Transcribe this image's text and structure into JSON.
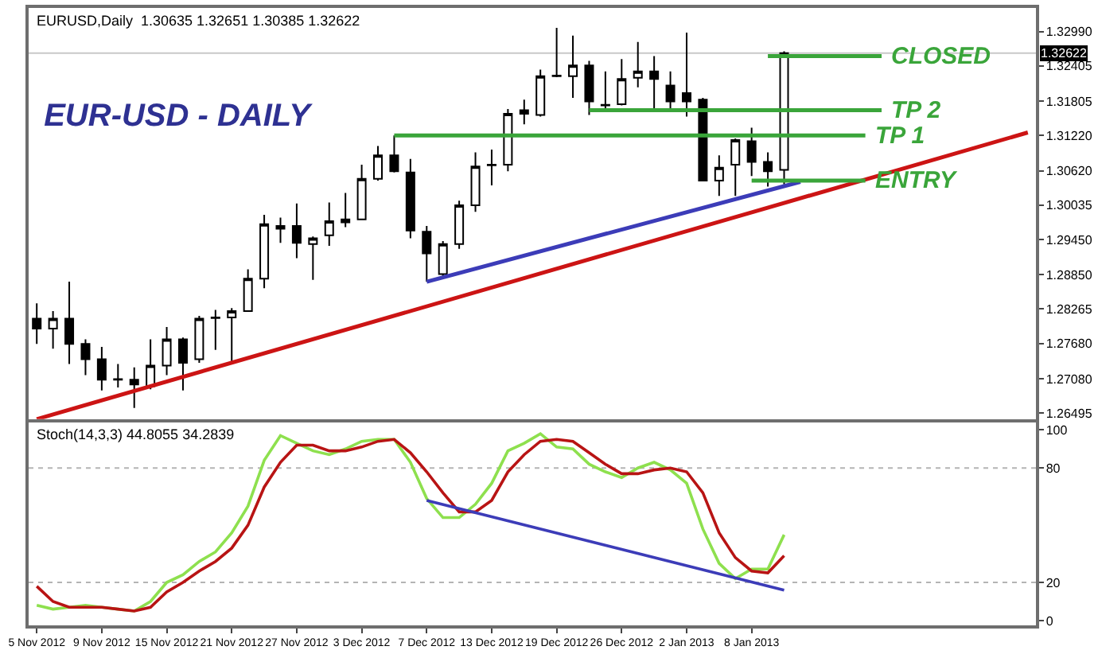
{
  "chart_data": [
    {
      "type": "candlestick",
      "title": "EUR-USD - DAILY",
      "annotations": [
        "EURUSD,Daily  1.30635 1.32651 1.30385 1.32622"
      ],
      "categories": [
        null,
        null,
        null,
        null,
        null,
        null,
        null,
        null,
        null,
        null,
        null,
        null,
        null,
        null,
        null,
        null,
        null,
        null,
        null,
        null,
        null,
        null,
        null,
        null,
        null,
        null,
        null,
        null,
        null,
        null,
        null,
        null,
        null,
        null,
        null,
        null,
        null,
        null,
        null,
        null,
        null,
        null,
        null,
        null,
        null,
        null,
        null,
        null,
        null,
        null,
        null,
        null,
        null,
        null,
        null,
        null,
        null,
        null,
        null,
        null,
        null,
        null
      ],
      "ohlc": [
        [
          1.281,
          1.2836,
          1.2767,
          1.2793
        ],
        [
          1.2793,
          1.2823,
          1.2759,
          1.281
        ],
        [
          1.281,
          1.2873,
          1.2733,
          1.2767
        ],
        [
          1.2767,
          1.2775,
          1.2714,
          1.2741
        ],
        [
          1.2741,
          1.2762,
          1.2688,
          1.2706
        ],
        [
          1.2707,
          1.2733,
          1.2693,
          1.2706
        ],
        [
          1.2706,
          1.2727,
          1.2658,
          1.2698
        ],
        [
          1.2695,
          1.2775,
          1.269,
          1.273
        ],
        [
          1.273,
          1.2796,
          1.2714,
          1.2775
        ],
        [
          1.2775,
          1.2778,
          1.2688,
          1.2735
        ],
        [
          1.2741,
          1.2815,
          1.2735,
          1.281
        ],
        [
          1.2811,
          1.2825,
          1.2757,
          1.2812
        ],
        [
          1.2812,
          1.2828,
          1.2735,
          1.2823
        ],
        [
          1.2823,
          1.2894,
          1.2823,
          1.2878
        ],
        [
          1.2878,
          1.2987,
          1.2862,
          1.2971
        ],
        [
          1.2963,
          1.2982,
          1.2939,
          1.2968
        ],
        [
          1.2968,
          1.3006,
          1.2913,
          1.2939
        ],
        [
          1.2937,
          1.295,
          1.2876,
          1.2947
        ],
        [
          1.2952,
          1.3008,
          1.2934,
          1.2976
        ],
        [
          1.2974,
          1.3024,
          1.2966,
          1.2979
        ],
        [
          1.2979,
          1.3072,
          1.2979,
          1.3048
        ],
        [
          1.3048,
          1.3104,
          1.3045,
          1.3088
        ],
        [
          1.3088,
          1.3122,
          1.3059,
          1.3061
        ],
        [
          1.3059,
          1.3082,
          1.2947,
          1.296
        ],
        [
          1.2958,
          1.2968,
          1.2873,
          1.2921
        ],
        [
          1.2886,
          1.2942,
          1.2881,
          1.2937
        ],
        [
          1.2937,
          1.3011,
          1.2929,
          1.3003
        ],
        [
          1.3003,
          1.3093,
          1.2992,
          1.3069
        ],
        [
          1.3071,
          1.3098,
          1.3037,
          1.3072
        ],
        [
          1.3072,
          1.3167,
          1.3061,
          1.3159
        ],
        [
          1.3165,
          1.3183,
          1.3141,
          1.3159
        ],
        [
          1.3157,
          1.3234,
          1.3154,
          1.3223
        ],
        [
          1.3223,
          1.3305,
          1.3221,
          1.3224
        ],
        [
          1.3223,
          1.3292,
          1.3186,
          1.3241
        ],
        [
          1.3241,
          1.3249,
          1.3157,
          1.318
        ],
        [
          1.3174,
          1.3231,
          1.3165,
          1.3173
        ],
        [
          1.3175,
          1.3252,
          1.3173,
          1.3218
        ],
        [
          1.322,
          1.3281,
          1.3204,
          1.3231
        ],
        [
          1.3231,
          1.3257,
          1.3167,
          1.3218
        ],
        [
          1.3207,
          1.3231,
          1.3167,
          1.318
        ],
        [
          1.3194,
          1.3297,
          1.3154,
          1.318
        ],
        [
          1.3183,
          1.3186,
          1.3044,
          1.3045
        ],
        [
          1.3045,
          1.3088,
          1.3019,
          1.3067
        ],
        [
          1.3072,
          1.3117,
          1.3019,
          1.3114
        ],
        [
          1.3112,
          1.3135,
          1.3053,
          1.3077
        ],
        [
          1.3077,
          1.3093,
          1.3035,
          1.3061
        ],
        [
          1.30635,
          1.32651,
          1.30385,
          1.32622
        ],
        null,
        null,
        null,
        null,
        null,
        null,
        null,
        null,
        null,
        null,
        null,
        null,
        null,
        null,
        null
      ],
      "series": [
        {
          "type": "line",
          "color": "#cc1414",
          "values": [
            1.2639,
            null,
            null,
            null,
            null,
            null,
            null,
            null,
            null,
            null,
            null,
            null,
            null,
            null,
            null,
            null,
            null,
            null,
            null,
            null,
            null,
            null,
            null,
            null,
            null,
            null,
            null,
            null,
            null,
            null,
            null,
            null,
            null,
            null,
            null,
            null,
            null,
            null,
            null,
            null,
            null,
            null,
            null,
            null,
            null,
            null,
            null,
            null,
            null,
            null,
            null,
            null,
            null,
            null,
            null,
            null,
            null,
            null,
            null,
            null,
            null,
            1.3127
          ]
        },
        {
          "type": "line",
          "color": "#3c3cb8",
          "values": [
            null,
            null,
            null,
            null,
            null,
            null,
            null,
            null,
            null,
            null,
            null,
            null,
            null,
            null,
            null,
            null,
            null,
            null,
            null,
            null,
            null,
            null,
            null,
            null,
            1.2873,
            null,
            null,
            null,
            null,
            null,
            null,
            null,
            null,
            null,
            null,
            null,
            null,
            null,
            null,
            null,
            null,
            null,
            null,
            null,
            null,
            null,
            null,
            1.3043,
            null,
            null,
            null,
            null,
            null,
            null,
            null,
            null,
            null,
            null,
            null,
            null,
            null,
            null
          ]
        },
        {
          "type": "line",
          "name": "CLOSED",
          "color": "#3aa53a",
          "values": [
            null,
            null,
            null,
            null,
            null,
            null,
            null,
            null,
            null,
            null,
            null,
            null,
            null,
            null,
            null,
            null,
            null,
            null,
            null,
            null,
            null,
            null,
            null,
            null,
            null,
            null,
            null,
            null,
            null,
            null,
            null,
            null,
            null,
            null,
            null,
            null,
            null,
            null,
            null,
            null,
            null,
            null,
            null,
            null,
            null,
            1.3257,
            null,
            null,
            null,
            null,
            null,
            null,
            1.3257,
            null,
            null,
            null,
            null,
            null,
            null,
            null,
            null,
            null
          ]
        },
        {
          "type": "line",
          "name": "TP 2",
          "color": "#3aa53a",
          "values": [
            null,
            null,
            null,
            null,
            null,
            null,
            null,
            null,
            null,
            null,
            null,
            null,
            null,
            null,
            null,
            null,
            null,
            null,
            null,
            null,
            null,
            null,
            null,
            null,
            null,
            null,
            null,
            null,
            null,
            null,
            null,
            null,
            null,
            null,
            1.3165,
            null,
            null,
            null,
            null,
            null,
            null,
            null,
            null,
            null,
            null,
            null,
            null,
            null,
            null,
            null,
            null,
            null,
            1.3165,
            null,
            null,
            null,
            null,
            null,
            null,
            null,
            null,
            null
          ]
        },
        {
          "type": "line",
          "name": "TP 1",
          "color": "#3aa53a",
          "values": [
            null,
            null,
            null,
            null,
            null,
            null,
            null,
            null,
            null,
            null,
            null,
            null,
            null,
            null,
            null,
            null,
            null,
            null,
            null,
            null,
            null,
            null,
            1.3122,
            null,
            null,
            null,
            null,
            null,
            null,
            null,
            null,
            null,
            null,
            null,
            null,
            null,
            null,
            null,
            null,
            null,
            null,
            null,
            null,
            null,
            null,
            null,
            null,
            null,
            null,
            null,
            null,
            1.3122,
            null,
            null,
            null,
            null,
            null,
            null,
            null,
            null,
            null,
            null
          ]
        },
        {
          "type": "line",
          "name": "ENTRY",
          "color": "#3aa53a",
          "values": [
            null,
            null,
            null,
            null,
            null,
            null,
            null,
            null,
            null,
            null,
            null,
            null,
            null,
            null,
            null,
            null,
            null,
            null,
            null,
            null,
            null,
            null,
            null,
            null,
            null,
            null,
            null,
            null,
            null,
            null,
            null,
            null,
            null,
            null,
            null,
            null,
            null,
            null,
            null,
            null,
            null,
            null,
            null,
            null,
            1.3045,
            null,
            null,
            null,
            null,
            null,
            null,
            1.3045,
            null,
            null,
            null,
            null,
            null,
            null,
            null,
            null,
            null,
            null
          ]
        }
      ],
      "ref_lines": [
        {
          "axis": "y",
          "value": 1.32622,
          "label": "1.32622",
          "color": "#c8c8c8",
          "line_style": "solid"
        }
      ],
      "ylim": [
        1.2639,
        1.3339
      ],
      "yticks": [
        {
          "value": 1.3299,
          "label": "1.32990"
        },
        {
          "value": 1.32405,
          "label": "1.32405"
        },
        {
          "value": 1.31805,
          "label": "1.31805"
        },
        {
          "value": 1.3122,
          "label": "1.31220"
        },
        {
          "value": 1.3062,
          "label": "1.30620"
        },
        {
          "value": 1.30035,
          "label": "1.30035"
        },
        {
          "value": 1.2945,
          "label": "1.29450"
        },
        {
          "value": 1.2885,
          "label": "1.28850"
        },
        {
          "value": 1.28265,
          "label": "1.28265"
        },
        {
          "value": 1.2768,
          "label": "1.27680"
        },
        {
          "value": 1.2708,
          "label": "1.27080"
        },
        {
          "value": 1.26495,
          "label": "1.26495"
        }
      ],
      "tick_labels": "y"
    },
    {
      "type": "line",
      "annotations": [
        "Stoch(14,3,3) 44.8055 34.2839"
      ],
      "categories": [
        "5 Nov 2012",
        null,
        null,
        null,
        "9 Nov 2012",
        null,
        null,
        null,
        "15 Nov 2012",
        null,
        null,
        null,
        "21 Nov 2012",
        null,
        null,
        null,
        "27 Nov 2012",
        null,
        null,
        null,
        "3 Dec 2012",
        null,
        null,
        null,
        "7 Dec 2012",
        null,
        null,
        null,
        "13 Dec 2012",
        null,
        null,
        null,
        "19 Dec 2012",
        null,
        null,
        null,
        "26 Dec 2012",
        null,
        null,
        null,
        "2 Jan 2013",
        null,
        null,
        null,
        "8 Jan 2013",
        null,
        null,
        null,
        null,
        null,
        null,
        null,
        null,
        null,
        null,
        null,
        null,
        null,
        null,
        null,
        null,
        null
      ],
      "series": [
        {
          "color": "#8ee04e",
          "values": [
            8,
            6,
            7,
            8,
            7,
            6,
            5,
            10,
            20,
            24,
            31,
            36,
            46,
            60,
            84,
            97,
            93,
            89,
            87,
            90,
            94,
            95,
            95,
            83,
            64,
            54,
            54,
            61,
            72,
            89,
            93,
            98,
            91,
            90,
            82,
            78,
            75,
            80,
            83,
            79,
            72,
            48,
            30,
            22,
            27,
            27,
            45,
            null,
            null,
            null,
            null,
            null,
            null,
            null,
            null,
            null,
            null,
            null,
            null,
            null,
            null,
            null
          ]
        },
        {
          "color": "#b81414",
          "values": [
            18,
            10,
            7,
            7,
            7,
            6,
            5,
            7,
            15,
            20,
            26,
            31,
            38,
            50,
            70,
            83,
            92,
            92,
            89,
            89,
            91,
            94,
            95,
            88,
            78,
            67,
            57,
            57,
            63,
            78,
            87,
            94,
            95,
            94,
            88,
            82,
            77,
            77,
            79,
            80,
            78,
            67,
            46,
            33,
            26,
            25,
            34,
            null,
            null,
            null,
            null,
            null,
            null,
            null,
            null,
            null,
            null,
            null,
            null,
            null,
            null,
            null
          ]
        },
        {
          "color": "#3c3cb8",
          "values": [
            null,
            null,
            null,
            null,
            null,
            null,
            null,
            null,
            null,
            null,
            null,
            null,
            null,
            null,
            null,
            null,
            null,
            null,
            null,
            null,
            null,
            null,
            null,
            null,
            63,
            null,
            null,
            null,
            null,
            null,
            null,
            null,
            null,
            null,
            null,
            null,
            null,
            null,
            null,
            null,
            null,
            null,
            null,
            null,
            null,
            null,
            16,
            null,
            null,
            null,
            null,
            null,
            null,
            null,
            null,
            null,
            null,
            null,
            null,
            null,
            null,
            null
          ]
        }
      ],
      "ref_lines": [
        {
          "axis": "y",
          "value": 20,
          "color": "#b4b4b4",
          "line_style": "dotted"
        },
        {
          "axis": "y",
          "value": 80,
          "color": "#b4b4b4",
          "line_style": "dotted"
        }
      ],
      "ylim": [
        -2.5,
        104
      ],
      "yticks": [
        0,
        20,
        80,
        100
      ]
    }
  ]
}
